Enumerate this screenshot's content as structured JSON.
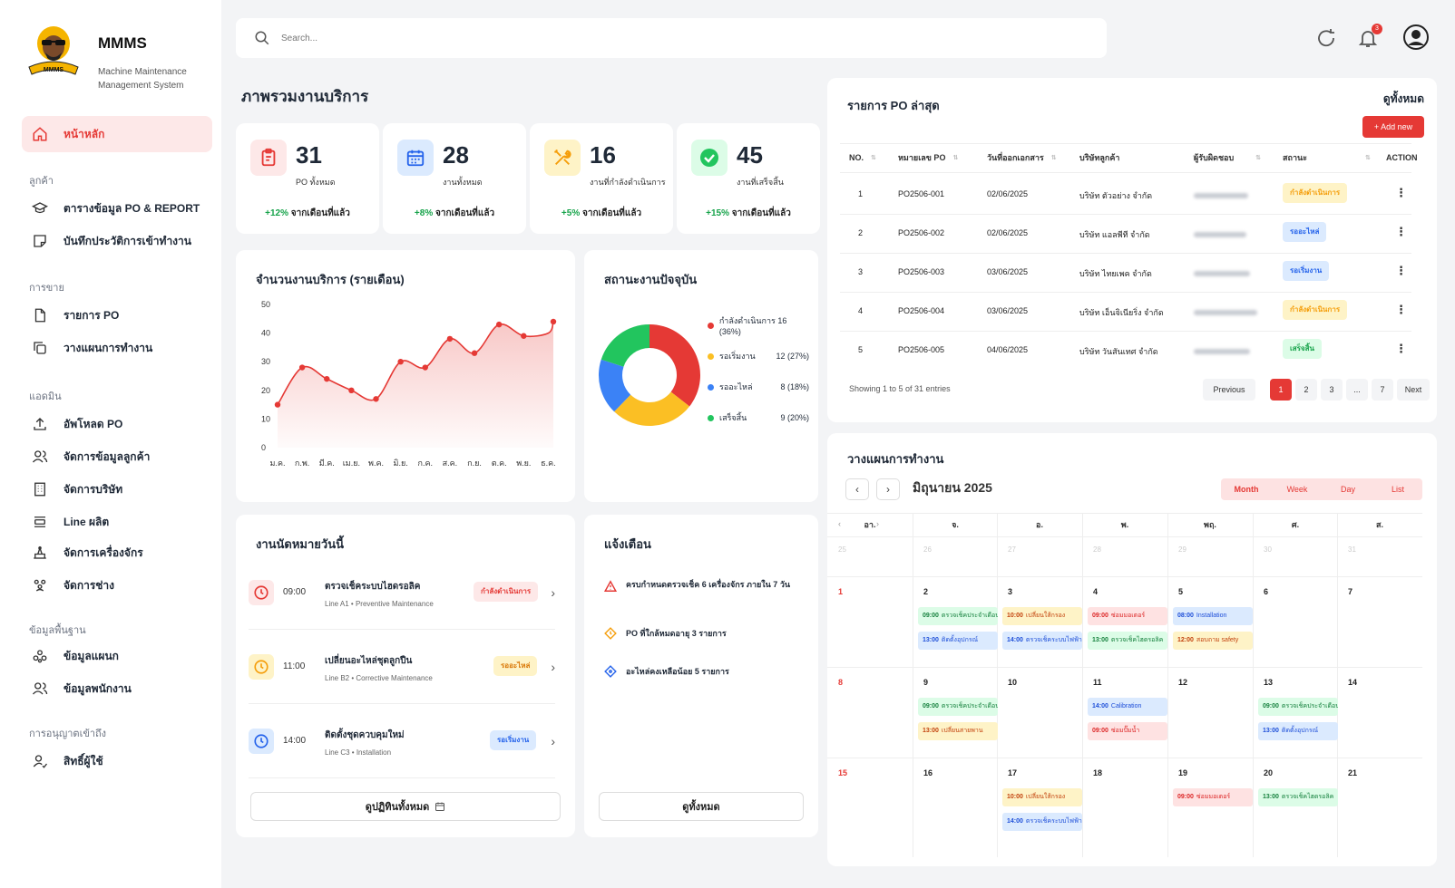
{
  "brand": {
    "title": "MMMS",
    "subtitle": "Machine Maintenance Management System",
    "logo_text": "MMMS"
  },
  "sidebar": {
    "home": "หน้าหลัก",
    "sections": [
      "ลูกค้า",
      "การขาย",
      "แอดมิน",
      "ข้อมูลพื้นฐาน",
      "การอนุญาตเข้าถึง"
    ],
    "items": [
      {
        "label": "ตารางข้อมูล PO & REPORT",
        "icon": "graduation-cap-icon"
      },
      {
        "label": "บันทึกประวัติการเข้าทำงาน",
        "icon": "note-icon"
      },
      {
        "label": "รายการ PO",
        "icon": "document-icon"
      },
      {
        "label": "วางแผนการทำงาน",
        "icon": "copy-icon"
      },
      {
        "label": "อัพโหลด PO",
        "icon": "upload-icon"
      },
      {
        "label": "จัดการข้อมูลลูกค้า",
        "icon": "users-icon"
      },
      {
        "label": "จัดการบริษัท",
        "icon": "building-icon"
      },
      {
        "label": "Line ผลิต",
        "icon": "line-icon"
      },
      {
        "label": "จัดการเครื่องจักร",
        "icon": "machine-icon"
      },
      {
        "label": "จัดการช่าง",
        "icon": "team-icon"
      },
      {
        "label": "ข้อมูลแผนก",
        "icon": "department-icon"
      },
      {
        "label": "ข้อมูลพนักงาน",
        "icon": "employee-icon"
      },
      {
        "label": "สิทธิ์ผู้ใช้",
        "icon": "user-permission-icon"
      }
    ]
  },
  "search": {
    "placeholder": "Search..."
  },
  "header": {
    "notifications": "3"
  },
  "overview": {
    "title": "ภาพรวมงานบริการ"
  },
  "stats": [
    {
      "value": "31",
      "label": "PO ทั้งหมด",
      "change": "+12%",
      "suffix": "จากเดือนที่แล้ว",
      "color": "#e53935",
      "bg": "#fde8e8",
      "icon": "clipboard-icon"
    },
    {
      "value": "28",
      "label": "งานทั้งหมด",
      "change": "+8%",
      "suffix": "จากเดือนที่แล้ว",
      "color": "#2563eb",
      "bg": "#dbeafe",
      "icon": "calendar-icon"
    },
    {
      "value": "16",
      "label": "งานที่กำลังดำเนินการ",
      "change": "+5%",
      "suffix": "จากเดือนที่แล้ว",
      "color": "#f59e0b",
      "bg": "#fef3c7",
      "icon": "tools-icon"
    },
    {
      "value": "45",
      "label": "งานที่เสร็จสิ้น",
      "change": "+15%",
      "suffix": "จากเดือนที่แล้ว",
      "color": "#16a34a",
      "bg": "#dcfce7",
      "icon": "check-circle-icon"
    }
  ],
  "chart_data": [
    {
      "type": "area",
      "title": "จำนวนงานบริการ (รายเดือน)",
      "categories": [
        "ม.ค.",
        "ก.พ.",
        "มี.ค.",
        "เม.ย.",
        "พ.ค.",
        "มิ.ย.",
        "ก.ค.",
        "ส.ค.",
        "ก.ย.",
        "ต.ค.",
        "พ.ย.",
        "ธ.ค."
      ],
      "values": [
        15,
        28,
        24,
        20,
        17,
        30,
        28,
        38,
        33,
        43,
        39,
        40
      ],
      "extra_point_value": 44,
      "ylim": [
        0,
        50
      ],
      "yticks": [
        0,
        10,
        20,
        30,
        40,
        50
      ],
      "color": "#e53935",
      "grid": false
    },
    {
      "type": "pie",
      "title": "สถานะงานปัจจุบัน",
      "legend": "right",
      "slices": [
        {
          "name": "กำลังดำเนินการ",
          "value": 16,
          "label": "กำลังดำเนินการ 16 (36%)",
          "color": "#e53935"
        },
        {
          "name": "รอเริ่มงาน",
          "value": 12,
          "label": "12 (27%)",
          "color": "#fbbf24"
        },
        {
          "name": "รออะไหล่",
          "value": 8,
          "label": "8 (18%)",
          "color": "#3b82f6"
        },
        {
          "name": "เสร็จสิ้น",
          "value": 9,
          "label": "9 (20%)",
          "color": "#22c55e"
        }
      ]
    }
  ],
  "appointments": {
    "title": "งานนัดหมายวันนี้",
    "items": [
      {
        "time": "09:00",
        "title": "ตรวจเช็คระบบไฮดรอลิค",
        "sub": "Line A1 • Preventive Maintenance",
        "status": "กำลังดำเนินการ",
        "color": "#e53935",
        "bg": "#fde8e8"
      },
      {
        "time": "11:00",
        "title": "เปลี่ยนอะไหล่ชุดลูกปืน",
        "sub": "Line B2 • Corrective Maintenance",
        "status": "รออะไหล่",
        "color": "#f59e0b",
        "bg": "#fef3c7"
      },
      {
        "time": "14:00",
        "title": "ติดตั้งชุดควบคุมใหม่",
        "sub": "Line C3 • Installation",
        "status": "รอเริ่มงาน",
        "color": "#2563eb",
        "bg": "#dbeafe"
      }
    ],
    "button": "ดูปฏิทินทั้งหมด"
  },
  "alerts": {
    "title": "แจ้งเตือน",
    "items": [
      {
        "text": "ครบกำหนดตรวจเช็ค 6 เครื่องจักร ภายใน 7 วัน",
        "icon": "warning-icon",
        "color": "#e53935"
      },
      {
        "text": "PO ที่ใกล้หมดอายุ 3 รายการ",
        "icon": "clock-alert-icon",
        "color": "#f59e0b"
      },
      {
        "text": "อะไหล่คงเหลือน้อย 5 รายการ",
        "icon": "diamond-info-icon",
        "color": "#2563eb"
      }
    ],
    "button": "ดูทั้งหมด"
  },
  "po_list": {
    "title": "รายการ PO ล่าสุด",
    "view_all": "ดูทั้งหมด",
    "add_new": "+ Add new",
    "columns": [
      "NO.",
      "หมายเลข PO",
      "วันที่ออกเอกสาร",
      "บริษัทลูกค้า",
      "ผู้รับผิดชอบ",
      "สถานะ",
      "ACTION"
    ],
    "rows": [
      {
        "no": "1",
        "po": "PO2506-001",
        "date": "02/06/2025",
        "company": "บริษัท ตัวอย่าง จำกัด",
        "status": "กำลังดำเนินการ",
        "color": "#f59e0b",
        "bg": "#fef3c7"
      },
      {
        "no": "2",
        "po": "PO2506-002",
        "date": "02/06/2025",
        "company": "บริษัท แอลพีที จำกัด",
        "status": "รออะไหล่",
        "color": "#2563eb",
        "bg": "#dbeafe"
      },
      {
        "no": "3",
        "po": "PO2506-003",
        "date": "03/06/2025",
        "company": "บริษัท ไทยเพค จำกัด",
        "status": "รอเริ่มงาน",
        "color": "#2563eb",
        "bg": "#dbeafe"
      },
      {
        "no": "4",
        "po": "PO2506-004",
        "date": "03/06/2025",
        "company": "บริษัท เอ็นจิเนียริ่ง จำกัด",
        "status": "กำลังดำเนินการ",
        "color": "#f59e0b",
        "bg": "#fef3c7"
      },
      {
        "no": "5",
        "po": "PO2506-005",
        "date": "04/06/2025",
        "company": "บริษัท วันสันเทศ จำกัด",
        "status": "เสร็จสิ้น",
        "color": "#16a34a",
        "bg": "#dcfce7"
      }
    ],
    "showing": "Showing 1 to 5 of 31 entries",
    "pagination": [
      "Previous",
      "1",
      "2",
      "3",
      "...",
      "7",
      "Next"
    ]
  },
  "planner": {
    "title": "วางแผนการทำงาน",
    "month": "มิถุนายน 2025",
    "views": [
      "Month",
      "Week",
      "Day",
      "List"
    ],
    "weekdays": [
      "อา.",
      "จ.",
      "อ.",
      "พ.",
      "พฤ.",
      "ศ.",
      "ส."
    ],
    "weeks": [
      [
        "25",
        "26",
        "27",
        "28",
        "29",
        "30",
        "31"
      ],
      [
        "1",
        "2",
        "3",
        "4",
        "5",
        "6",
        "7"
      ],
      [
        "8",
        "9",
        "10",
        "11",
        "12",
        "13",
        "14"
      ],
      [
        "15",
        "16",
        "17",
        "18",
        "19",
        "20",
        "21"
      ]
    ],
    "events": [
      {
        "week": 1,
        "day": 1,
        "slot": 0,
        "time": "09:00",
        "text": "ตรวจเช็คประจำเดือน",
        "kind": "ev-g"
      },
      {
        "week": 1,
        "day": 1,
        "slot": 1,
        "time": "13:00",
        "text": "ติดตั้งอุปกรณ์",
        "kind": "ev-b"
      },
      {
        "week": 1,
        "day": 2,
        "slot": 0,
        "time": "10:00",
        "text": "เปลี่ยนใส้กรอง",
        "kind": "ev-o"
      },
      {
        "week": 1,
        "day": 2,
        "slot": 1,
        "time": "14:00",
        "text": "ตรวจเช็คระบบไฟฟ้า",
        "kind": "ev-b"
      },
      {
        "week": 1,
        "day": 3,
        "slot": 0,
        "time": "09:00",
        "text": "ซ่อมมอเตอร์",
        "kind": "ev-r"
      },
      {
        "week": 1,
        "day": 3,
        "slot": 1,
        "time": "13:00",
        "text": "ตรวจเช็คไฮดรอลิค",
        "kind": "ev-g"
      },
      {
        "week": 1,
        "day": 4,
        "slot": 0,
        "time": "08:00",
        "text": "Installation",
        "kind": "ev-b"
      },
      {
        "week": 1,
        "day": 4,
        "slot": 1,
        "time": "12:00",
        "text": "สอบถาม safety",
        "kind": "ev-o"
      },
      {
        "week": 2,
        "day": 1,
        "slot": 0,
        "time": "09:00",
        "text": "ตรวจเช็คประจำเดือน",
        "kind": "ev-g"
      },
      {
        "week": 2,
        "day": 1,
        "slot": 1,
        "time": "13:00",
        "text": "เปลี่ยนสายพาน",
        "kind": "ev-o"
      },
      {
        "week": 2,
        "day": 3,
        "slot": 0,
        "time": "14:00",
        "text": "Calibration",
        "kind": "ev-b"
      },
      {
        "week": 2,
        "day": 3,
        "slot": 1,
        "time": "09:00",
        "text": "ซ่อมปั๊มน้ำ",
        "kind": "ev-r"
      },
      {
        "week": 2,
        "day": 5,
        "slot": 0,
        "time": "09:00",
        "text": "ตรวจเช็คประจำเดือน",
        "kind": "ev-g"
      },
      {
        "week": 2,
        "day": 5,
        "slot": 1,
        "time": "13:00",
        "text": "ติดตั้งอุปกรณ์",
        "kind": "ev-b"
      },
      {
        "week": 3,
        "day": 2,
        "slot": 0,
        "time": "10:00",
        "text": "เปลี่ยนใส้กรอง",
        "kind": "ev-o"
      },
      {
        "week": 3,
        "day": 2,
        "slot": 1,
        "time": "14:00",
        "text": "ตรวจเช็คระบบไฟฟ้า",
        "kind": "ev-b"
      },
      {
        "week": 3,
        "day": 4,
        "slot": 0,
        "time": "09:00",
        "text": "ซ่อมมอเตอร์",
        "kind": "ev-r"
      },
      {
        "week": 3,
        "day": 5,
        "slot": 0,
        "time": "13:00",
        "text": "ตรวจเช็คไฮดรอลิค",
        "kind": "ev-g"
      }
    ]
  }
}
